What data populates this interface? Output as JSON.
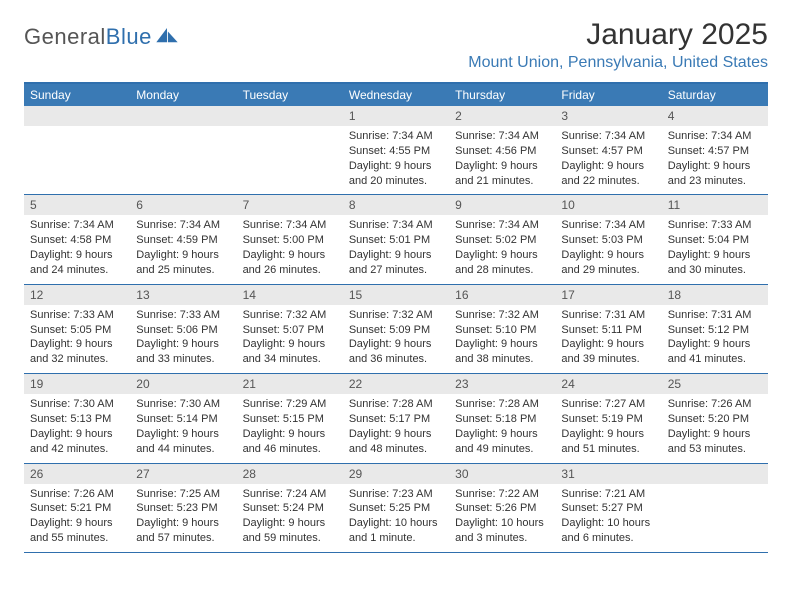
{
  "brand": {
    "word1": "General",
    "word2": "Blue",
    "logo_color": "#2f6fad"
  },
  "title": "January 2025",
  "location": "Mount Union, Pennsylvania, United States",
  "colors": {
    "header_bg": "#3a7ab5",
    "border": "#2f6fad",
    "daynum_bg": "#e9e9e9",
    "text": "#333333",
    "location": "#3a7ab5"
  },
  "days_of_week": [
    "Sunday",
    "Monday",
    "Tuesday",
    "Wednesday",
    "Thursday",
    "Friday",
    "Saturday"
  ],
  "weeks": [
    [
      null,
      null,
      null,
      {
        "n": "1",
        "sunrise": "7:34 AM",
        "sunset": "4:55 PM",
        "daylight": "9 hours and 20 minutes."
      },
      {
        "n": "2",
        "sunrise": "7:34 AM",
        "sunset": "4:56 PM",
        "daylight": "9 hours and 21 minutes."
      },
      {
        "n": "3",
        "sunrise": "7:34 AM",
        "sunset": "4:57 PM",
        "daylight": "9 hours and 22 minutes."
      },
      {
        "n": "4",
        "sunrise": "7:34 AM",
        "sunset": "4:57 PM",
        "daylight": "9 hours and 23 minutes."
      }
    ],
    [
      {
        "n": "5",
        "sunrise": "7:34 AM",
        "sunset": "4:58 PM",
        "daylight": "9 hours and 24 minutes."
      },
      {
        "n": "6",
        "sunrise": "7:34 AM",
        "sunset": "4:59 PM",
        "daylight": "9 hours and 25 minutes."
      },
      {
        "n": "7",
        "sunrise": "7:34 AM",
        "sunset": "5:00 PM",
        "daylight": "9 hours and 26 minutes."
      },
      {
        "n": "8",
        "sunrise": "7:34 AM",
        "sunset": "5:01 PM",
        "daylight": "9 hours and 27 minutes."
      },
      {
        "n": "9",
        "sunrise": "7:34 AM",
        "sunset": "5:02 PM",
        "daylight": "9 hours and 28 minutes."
      },
      {
        "n": "10",
        "sunrise": "7:34 AM",
        "sunset": "5:03 PM",
        "daylight": "9 hours and 29 minutes."
      },
      {
        "n": "11",
        "sunrise": "7:33 AM",
        "sunset": "5:04 PM",
        "daylight": "9 hours and 30 minutes."
      }
    ],
    [
      {
        "n": "12",
        "sunrise": "7:33 AM",
        "sunset": "5:05 PM",
        "daylight": "9 hours and 32 minutes."
      },
      {
        "n": "13",
        "sunrise": "7:33 AM",
        "sunset": "5:06 PM",
        "daylight": "9 hours and 33 minutes."
      },
      {
        "n": "14",
        "sunrise": "7:32 AM",
        "sunset": "5:07 PM",
        "daylight": "9 hours and 34 minutes."
      },
      {
        "n": "15",
        "sunrise": "7:32 AM",
        "sunset": "5:09 PM",
        "daylight": "9 hours and 36 minutes."
      },
      {
        "n": "16",
        "sunrise": "7:32 AM",
        "sunset": "5:10 PM",
        "daylight": "9 hours and 38 minutes."
      },
      {
        "n": "17",
        "sunrise": "7:31 AM",
        "sunset": "5:11 PM",
        "daylight": "9 hours and 39 minutes."
      },
      {
        "n": "18",
        "sunrise": "7:31 AM",
        "sunset": "5:12 PM",
        "daylight": "9 hours and 41 minutes."
      }
    ],
    [
      {
        "n": "19",
        "sunrise": "7:30 AM",
        "sunset": "5:13 PM",
        "daylight": "9 hours and 42 minutes."
      },
      {
        "n": "20",
        "sunrise": "7:30 AM",
        "sunset": "5:14 PM",
        "daylight": "9 hours and 44 minutes."
      },
      {
        "n": "21",
        "sunrise": "7:29 AM",
        "sunset": "5:15 PM",
        "daylight": "9 hours and 46 minutes."
      },
      {
        "n": "22",
        "sunrise": "7:28 AM",
        "sunset": "5:17 PM",
        "daylight": "9 hours and 48 minutes."
      },
      {
        "n": "23",
        "sunrise": "7:28 AM",
        "sunset": "5:18 PM",
        "daylight": "9 hours and 49 minutes."
      },
      {
        "n": "24",
        "sunrise": "7:27 AM",
        "sunset": "5:19 PM",
        "daylight": "9 hours and 51 minutes."
      },
      {
        "n": "25",
        "sunrise": "7:26 AM",
        "sunset": "5:20 PM",
        "daylight": "9 hours and 53 minutes."
      }
    ],
    [
      {
        "n": "26",
        "sunrise": "7:26 AM",
        "sunset": "5:21 PM",
        "daylight": "9 hours and 55 minutes."
      },
      {
        "n": "27",
        "sunrise": "7:25 AM",
        "sunset": "5:23 PM",
        "daylight": "9 hours and 57 minutes."
      },
      {
        "n": "28",
        "sunrise": "7:24 AM",
        "sunset": "5:24 PM",
        "daylight": "9 hours and 59 minutes."
      },
      {
        "n": "29",
        "sunrise": "7:23 AM",
        "sunset": "5:25 PM",
        "daylight": "10 hours and 1 minute."
      },
      {
        "n": "30",
        "sunrise": "7:22 AM",
        "sunset": "5:26 PM",
        "daylight": "10 hours and 3 minutes."
      },
      {
        "n": "31",
        "sunrise": "7:21 AM",
        "sunset": "5:27 PM",
        "daylight": "10 hours and 6 minutes."
      },
      null
    ]
  ],
  "labels": {
    "sunrise": "Sunrise:",
    "sunset": "Sunset:",
    "daylight": "Daylight:"
  }
}
